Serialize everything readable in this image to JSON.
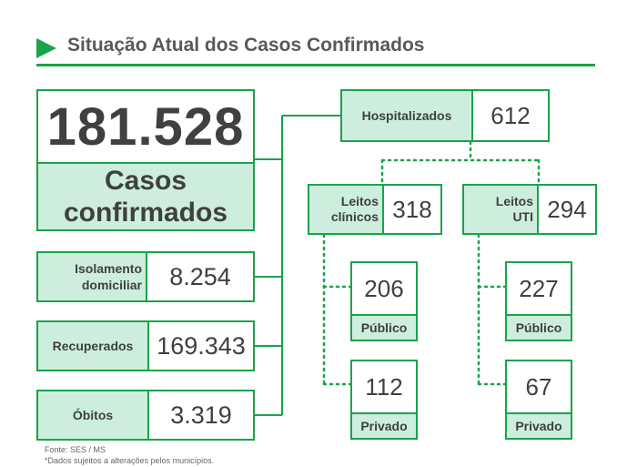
{
  "header": {
    "title": "Situação Atual dos Casos Confirmados"
  },
  "total": {
    "value": "181.528",
    "label_line1": "Casos",
    "label_line2": "confirmados"
  },
  "isolamento": {
    "label_line1": "Isolamento",
    "label_line2": "domiciliar",
    "value": "8.254"
  },
  "recuperados": {
    "label": "Recuperados",
    "value": "169.343"
  },
  "obitos": {
    "label": "Óbitos",
    "value": "3.319"
  },
  "hospitalizados": {
    "label": "Hospitalizados",
    "value": "612"
  },
  "leitos_clinicos": {
    "label_line1": "Leitos",
    "label_line2": "clínicos",
    "value": "318",
    "publico": {
      "value": "206",
      "label": "Público"
    },
    "privado": {
      "value": "112",
      "label": "Privado"
    }
  },
  "leitos_uti": {
    "label_line1": "Leitos",
    "label_line2": "UTI",
    "value": "294",
    "publico": {
      "value": "227",
      "label": "Público"
    },
    "privado": {
      "value": "67",
      "label": "Privado"
    }
  },
  "footer": {
    "source": "Fonte: SES / MS",
    "note": "*Dados sujeitos a alterações pelos municípios."
  },
  "colors": {
    "green": "#1aa34a",
    "light_green": "#cdeedd",
    "text": "#404040"
  }
}
